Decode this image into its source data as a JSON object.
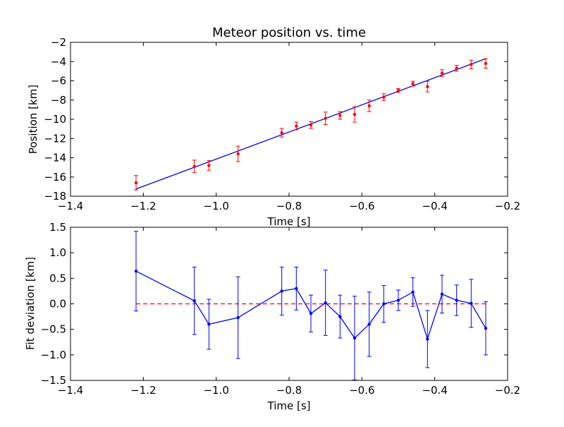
{
  "chart_data": [
    {
      "type": "scatter",
      "title": "Meteor position vs. time",
      "xlabel": "Time [s]",
      "ylabel": "Position [km]",
      "xlim": [
        -1.4,
        -0.2
      ],
      "ylim": [
        -18,
        -2
      ],
      "xticks": [
        "−1.4",
        "−1.2",
        "−1.0",
        "−0.8",
        "−0.6",
        "−0.4",
        "−0.2"
      ],
      "yticks": [
        "−18",
        "−16",
        "−14",
        "−12",
        "−10",
        "−8",
        "−6",
        "−4",
        "−2"
      ],
      "grid": false,
      "point_color": "#ff0000",
      "fit_color": "#0000ff",
      "fit_line": {
        "x": [
          -1.22,
          -0.26
        ],
        "y": [
          -17.25,
          -3.7
        ]
      },
      "series": [
        {
          "x": [
            -1.22,
            -1.06,
            -1.02,
            -0.94,
            -0.82,
            -0.78,
            -0.74,
            -0.7,
            -0.66,
            -0.62,
            -0.58,
            -0.54,
            -0.5,
            -0.46,
            -0.42,
            -0.38,
            -0.34,
            -0.3,
            -0.26
          ],
          "y": [
            -16.6,
            -14.9,
            -14.8,
            -13.6,
            -11.4,
            -10.7,
            -10.6,
            -9.9,
            -9.6,
            -9.5,
            -8.6,
            -7.7,
            -7.0,
            -6.3,
            -6.6,
            -5.2,
            -4.7,
            -4.3,
            -4.2
          ],
          "err": [
            0.75,
            0.65,
            0.5,
            0.8,
            0.45,
            0.4,
            0.35,
            0.65,
            0.4,
            0.8,
            0.6,
            0.35,
            0.2,
            0.25,
            0.55,
            0.35,
            0.3,
            0.45,
            0.5
          ]
        }
      ]
    },
    {
      "type": "line",
      "title": "",
      "xlabel": "Time [s]",
      "ylabel": "Fit deviation [km]",
      "xlim": [
        -1.4,
        -0.2
      ],
      "ylim": [
        -1.5,
        1.5
      ],
      "xticks": [
        "−1.4",
        "−1.2",
        "−1.0",
        "−0.8",
        "−0.6",
        "−0.4",
        "−0.2"
      ],
      "yticks": [
        "−1.5",
        "−1.0",
        "−0.5",
        "0.0",
        "0.5",
        "1.0",
        "1.5"
      ],
      "grid": false,
      "line_color": "#0000ff",
      "zero_line_color": "#ff0000",
      "zero_line": {
        "x": [
          -1.22,
          -0.26
        ],
        "y": 0
      },
      "series": [
        {
          "x": [
            -1.22,
            -1.06,
            -1.02,
            -0.94,
            -0.82,
            -0.78,
            -0.74,
            -0.7,
            -0.66,
            -0.62,
            -0.58,
            -0.54,
            -0.5,
            -0.46,
            -0.42,
            -0.38,
            -0.34,
            -0.3,
            -0.26
          ],
          "y": [
            0.64,
            0.06,
            -0.4,
            -0.27,
            0.25,
            0.3,
            -0.19,
            0.02,
            -0.25,
            -0.67,
            -0.4,
            0.0,
            0.07,
            0.23,
            -0.69,
            0.19,
            0.07,
            0.01,
            -0.48
          ],
          "err": [
            0.78,
            0.66,
            0.49,
            0.8,
            0.47,
            0.42,
            0.36,
            0.64,
            0.42,
            0.82,
            0.63,
            0.36,
            0.2,
            0.28,
            0.56,
            0.37,
            0.3,
            0.47,
            0.52
          ]
        }
      ]
    }
  ]
}
